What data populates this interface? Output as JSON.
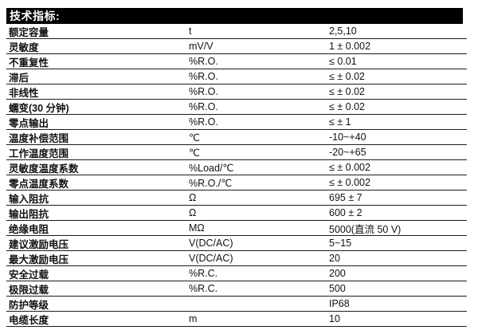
{
  "header": {
    "title": "技术指标:"
  },
  "table": {
    "rows": [
      {
        "name": "额定容量",
        "unit": "t",
        "value": "2,5,10"
      },
      {
        "name": "灵敏度",
        "unit": "mV/V",
        "value": "1 ± 0.002"
      },
      {
        "name": "不重复性",
        "unit": "%R.O.",
        "value": "≤ 0.01"
      },
      {
        "name": "滞后",
        "unit": "%R.O.",
        "value": "≤ ± 0.02"
      },
      {
        "name": "非线性",
        "unit": "%R.O.",
        "value": "≤ ± 0.02"
      },
      {
        "name": "蠕变(30 分钟)",
        "unit": "%R.O.",
        "value": "≤ ± 0.02"
      },
      {
        "name": "零点输出",
        "unit": "%R.O.",
        "value": "≤ ± 1"
      },
      {
        "name": "温度补偿范围",
        "unit": "℃",
        "value": "-10~+40"
      },
      {
        "name": "工作温度范围",
        "unit": "℃",
        "value": "-20~+65"
      },
      {
        "name": "灵敏度温度系数",
        "unit": "%Load/℃",
        "value": "≤ ± 0.002"
      },
      {
        "name": "零点温度系数",
        "unit": "%R.O./℃",
        "value": "≤ ± 0.002"
      },
      {
        "name": "输入阻抗",
        "unit": "Ω",
        "value": "695 ± 7"
      },
      {
        "name": "输出阻抗",
        "unit": "Ω",
        "value": "600 ± 2"
      },
      {
        "name": "绝缘电阻",
        "unit": "MΩ",
        "value": "5000(直流 50 V)"
      },
      {
        "name": "建议激励电压",
        "unit": "V(DC/AC)",
        "value": "5~15"
      },
      {
        "name": "最大激励电压",
        "unit": "V(DC/AC)",
        "value": "20"
      },
      {
        "name": "安全过载",
        "unit": "%R.C.",
        "value": "200"
      },
      {
        "name": "极限过载",
        "unit": "%R.C.",
        "value": "500"
      },
      {
        "name": "防护等级",
        "unit": "",
        "value": "IP68"
      },
      {
        "name": "电缆长度",
        "unit": "m",
        "value": "10"
      }
    ]
  },
  "colors": {
    "header_bg": "#000000",
    "header_text": "#ffffff",
    "row_text": "#111111",
    "divider": "#1c1c1c"
  }
}
